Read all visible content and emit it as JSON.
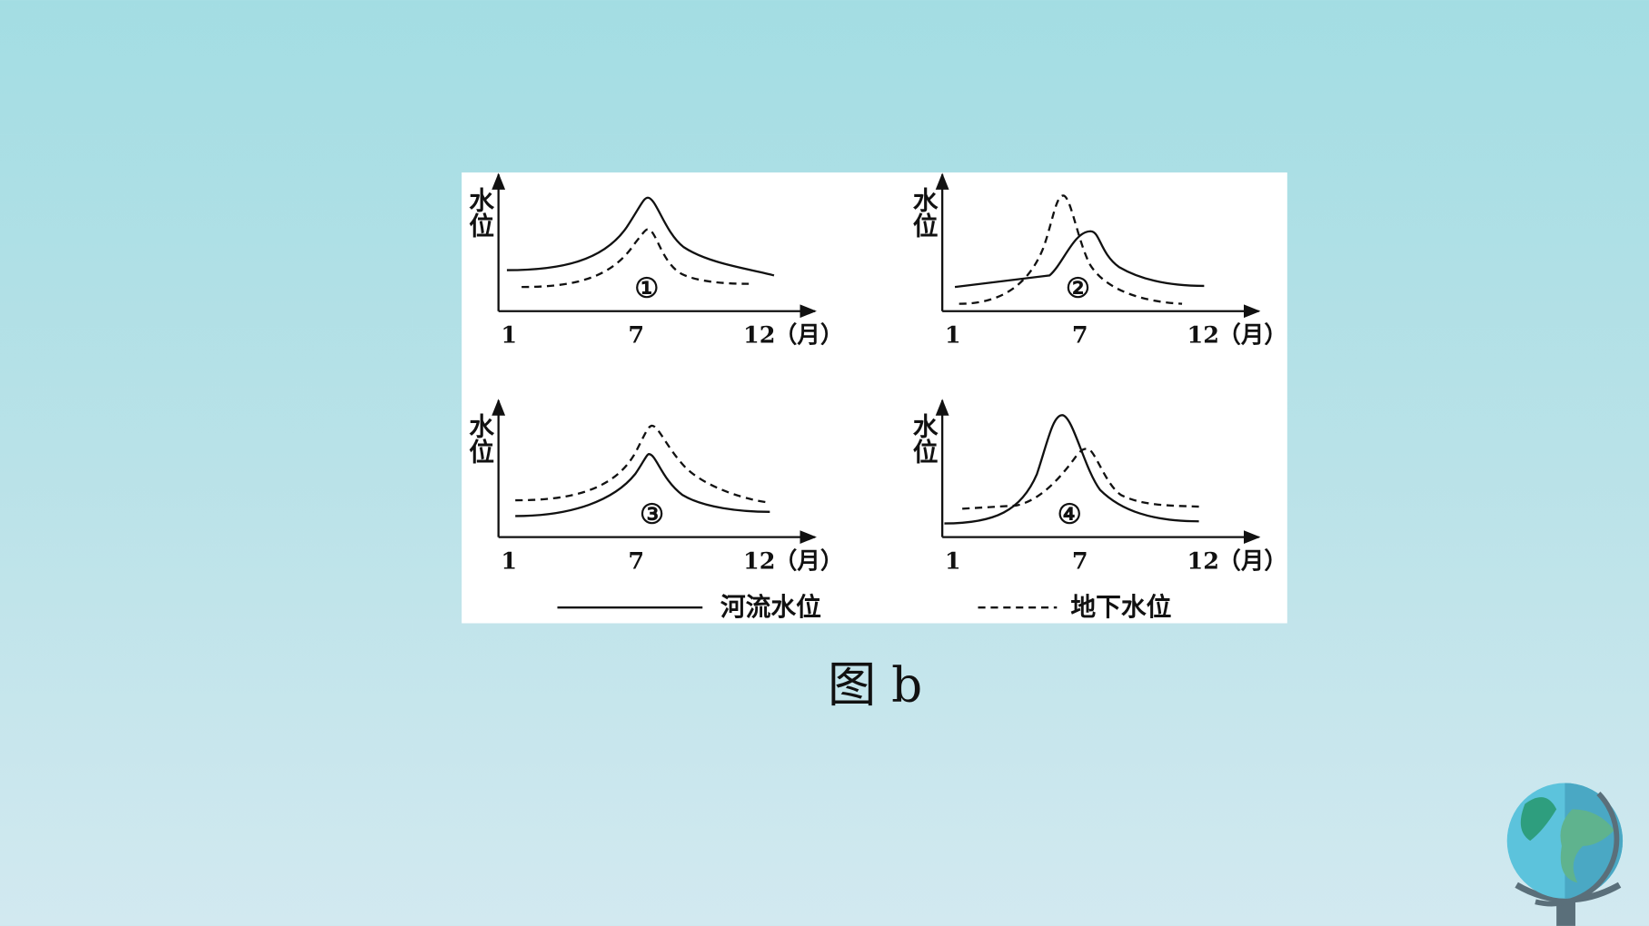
{
  "panels": [
    {
      "y_label": "水位",
      "x_ticks": [
        "1",
        "7",
        "12"
      ],
      "x_unit": "（月）",
      "marker": "①"
    },
    {
      "y_label": "水位",
      "x_ticks": [
        "1",
        "7",
        "12"
      ],
      "x_unit": "（月）",
      "marker": "②"
    },
    {
      "y_label": "水位",
      "x_ticks": [
        "1",
        "7",
        "12"
      ],
      "x_unit": "（月）",
      "marker": "③"
    },
    {
      "y_label": "水位",
      "x_ticks": [
        "1",
        "7",
        "12"
      ],
      "x_unit": "（月）",
      "marker": "④"
    }
  ],
  "legend": [
    "河流水位",
    "地下水位"
  ],
  "caption": "图 b"
}
